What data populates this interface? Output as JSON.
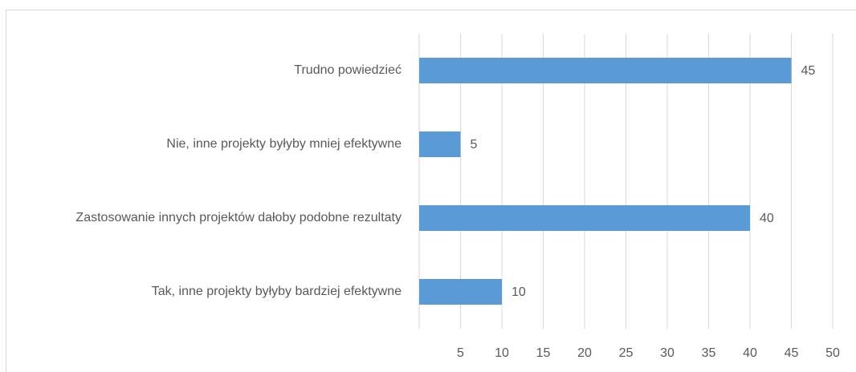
{
  "chart_data": {
    "type": "bar",
    "orientation": "horizontal",
    "categories": [
      "Trudno powiedzieć",
      "Nie, inne projekty byłyby mniej efektywne",
      "Zastosowanie innych projektów dałoby podobne rezultaty",
      "Tak, inne projekty byłyby bardziej efektywne"
    ],
    "values": [
      45,
      5,
      40,
      10
    ],
    "color": "#5b9bd5",
    "xlim": [
      0,
      50
    ],
    "xticks": [
      5,
      10,
      15,
      20,
      25,
      30,
      35,
      40,
      45,
      50
    ],
    "grid": true
  }
}
